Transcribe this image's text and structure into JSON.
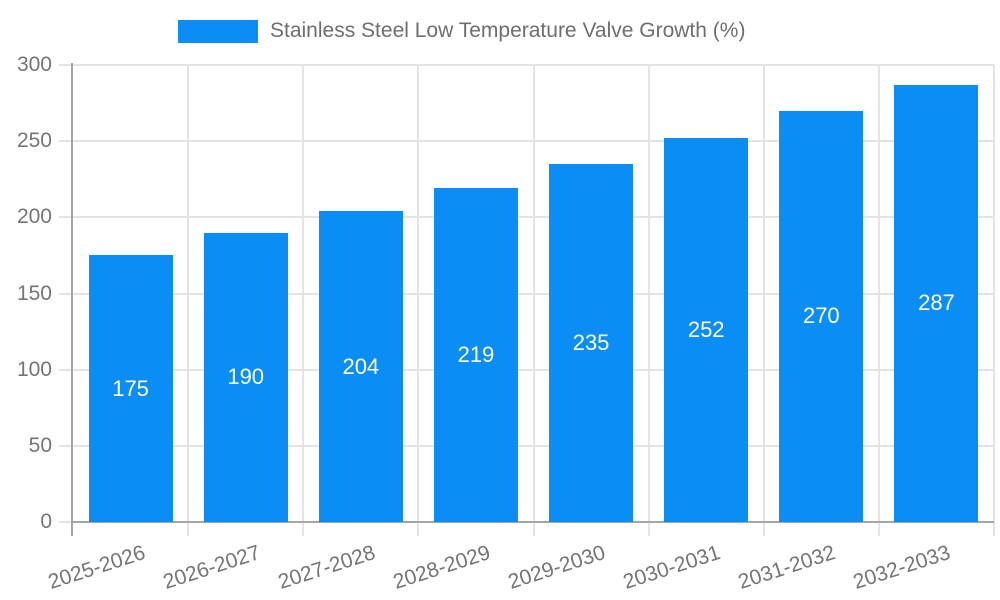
{
  "legend": {
    "label": "Stainless Steel Low Temperature Valve Growth (%)",
    "swatch_color": "#0a8ef5"
  },
  "chart_data": {
    "type": "bar",
    "title": "Stainless Steel Low Temperature Valve Growth (%)",
    "categories": [
      "2025-2026",
      "2026-2027",
      "2027-2028",
      "2028-2029",
      "2029-2030",
      "2030-2031",
      "2031-2032",
      "2032-2033"
    ],
    "values": [
      175,
      190,
      204,
      219,
      235,
      252,
      270,
      287
    ],
    "xlabel": "",
    "ylabel": "",
    "ylim": [
      0,
      300
    ],
    "ytick_step": 50,
    "yticks": [
      0,
      50,
      100,
      150,
      200,
      250,
      300
    ],
    "grid": true,
    "legend_position": "top",
    "bar_color": "#0a8ef5",
    "bar_label_color": "#ffffff",
    "axis_color": "#a5a5a5",
    "grid_color": "#e4e4e4",
    "tick_text_color": "#757575"
  }
}
